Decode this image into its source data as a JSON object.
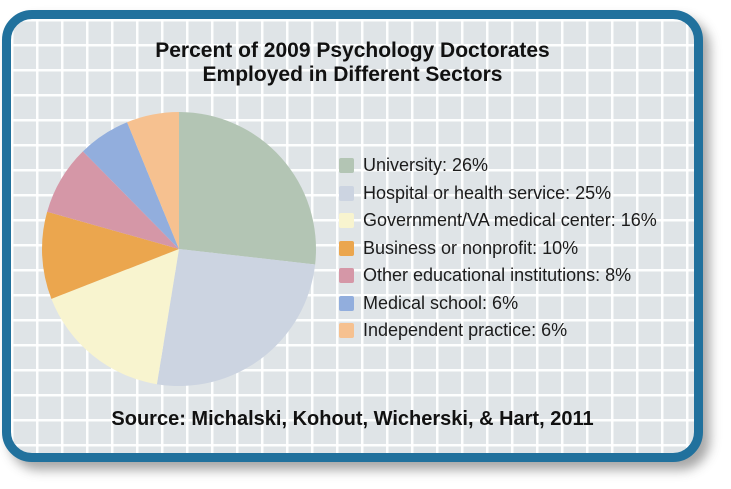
{
  "frame": {
    "border_color": "#21719d",
    "background_color": "#dfe4e7",
    "grid_line_color": "#ffffff"
  },
  "title": {
    "text": "Percent of 2009 Psychology Doctorates\nEmployed in Different Sectors"
  },
  "source": {
    "text": "Source: Michalski, Kohout, Wicherski, & Hart, 2011"
  },
  "chart_data": {
    "type": "pie",
    "title": "Percent of 2009 Psychology Doctorates Employed in Different Sectors",
    "categories": [
      "University",
      "Hospital or health service",
      "Government/VA medical center",
      "Business or nonprofit",
      "Other educational institutions",
      "Medical school",
      "Independent practice"
    ],
    "values": [
      26,
      25,
      16,
      10,
      8,
      6,
      6
    ],
    "unit": "%",
    "colors": [
      "#b3c5b4",
      "#ccd4e1",
      "#f8f4cf",
      "#eba64e",
      "#d597a7",
      "#92aedd",
      "#f6c190"
    ],
    "legend_position": "right",
    "start_angle_deg": -90,
    "direction": "clockwise",
    "source": "Source: Michalski, Kohout, Wicherski, & Hart, 2011"
  }
}
